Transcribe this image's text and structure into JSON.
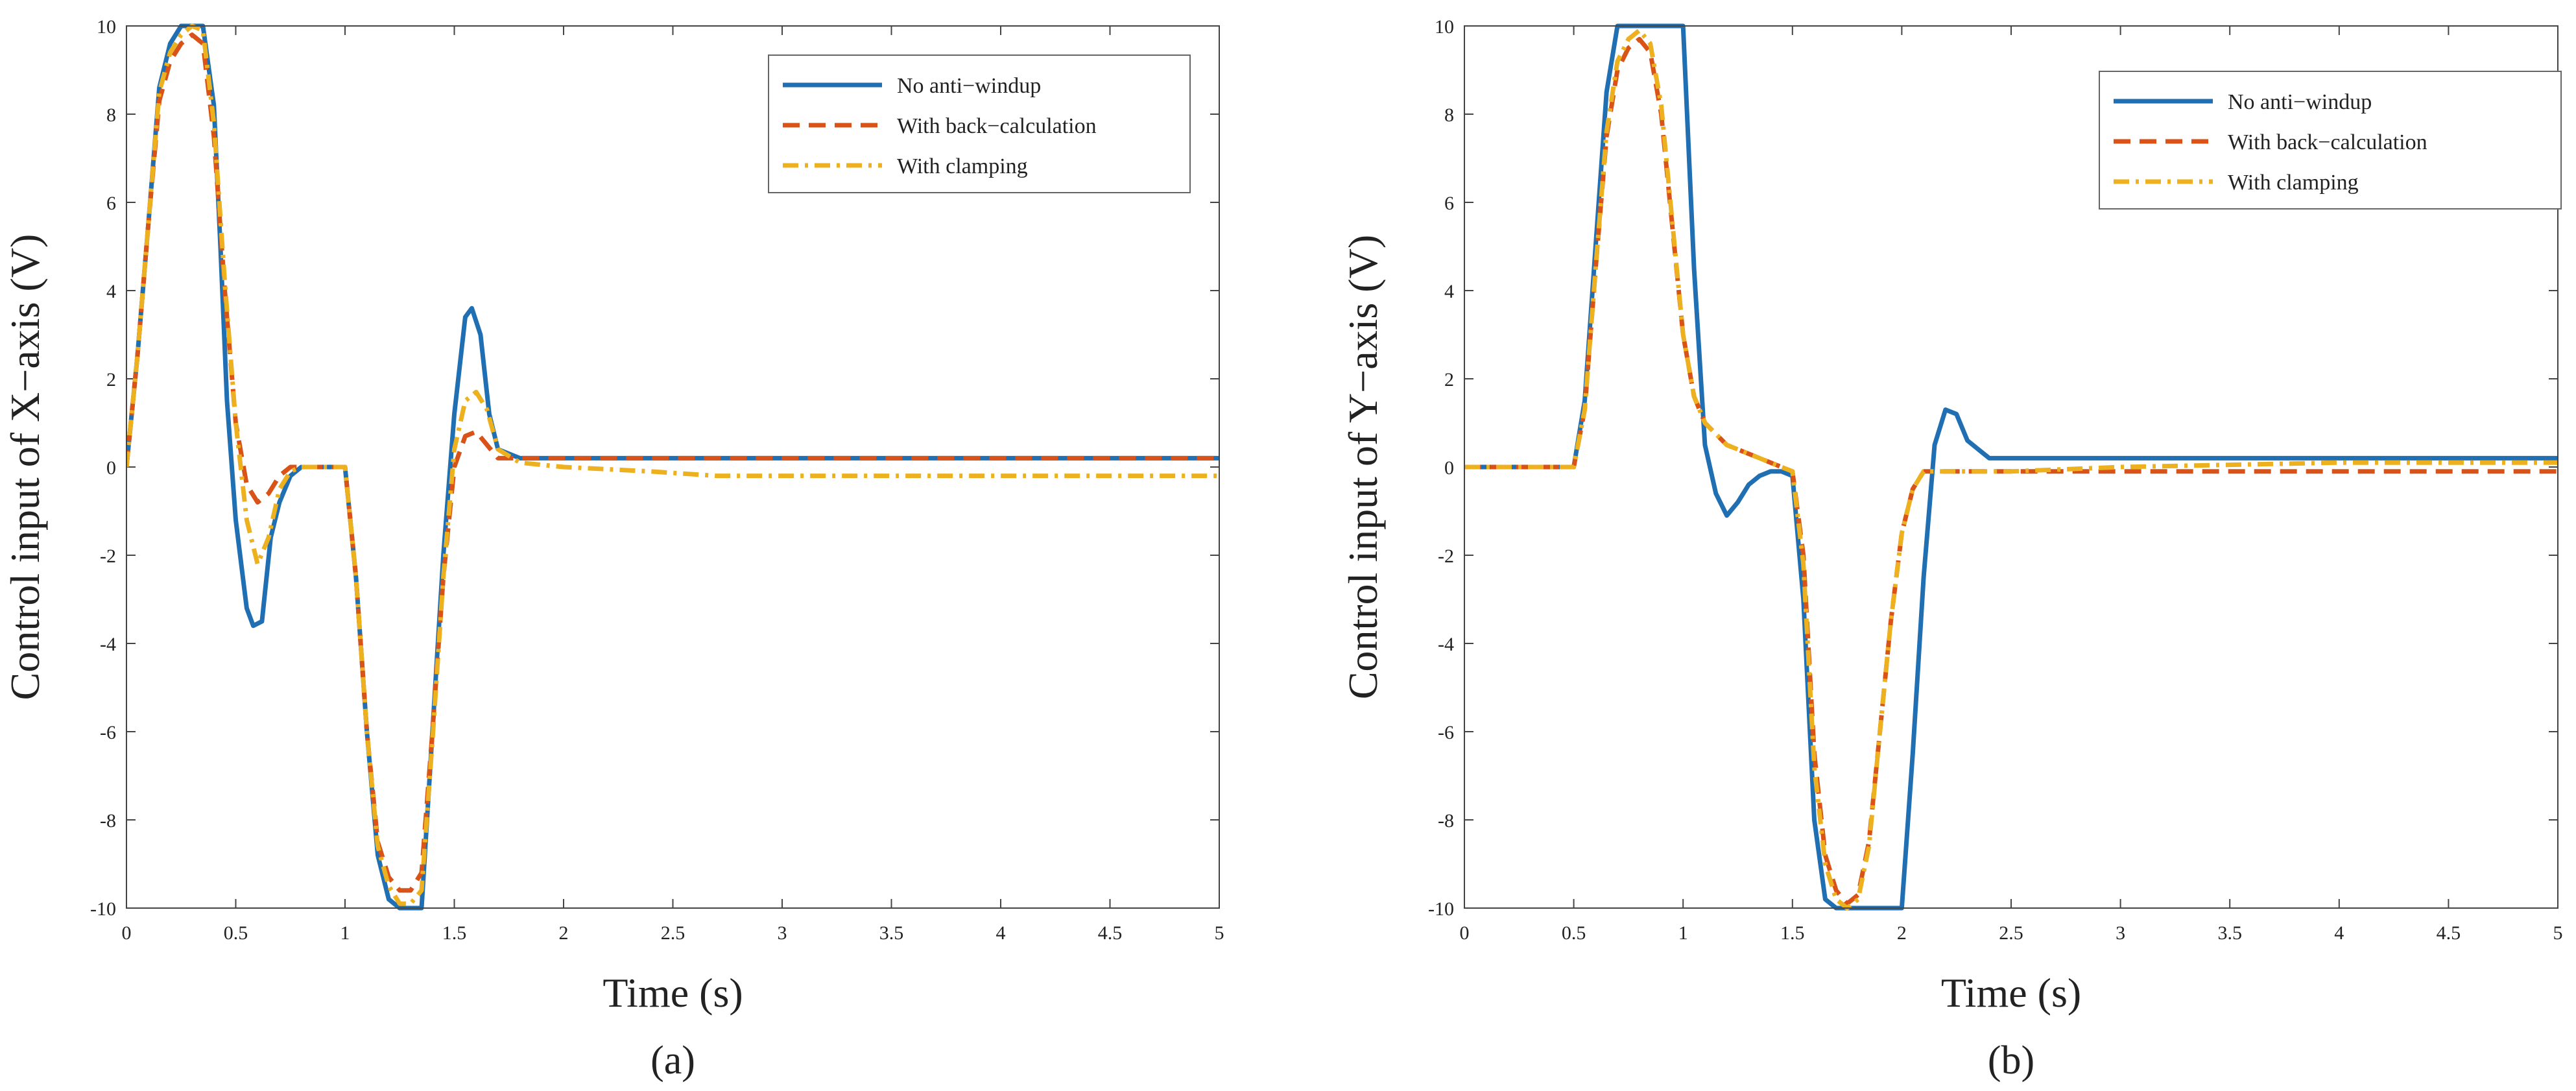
{
  "chart_data": [
    {
      "type": "line",
      "caption": "(a)",
      "xlabel": "Time (s)",
      "ylabel": "Control input of X−axis (V)",
      "xlim": [
        0,
        5
      ],
      "ylim": [
        -10,
        10
      ],
      "xticks": [
        0,
        0.5,
        1,
        1.5,
        2,
        2.5,
        3,
        3.5,
        4,
        4.5,
        5
      ],
      "xtick_labels": [
        "0",
        "0.5",
        "1",
        "1.5",
        "2",
        "2.5",
        "3",
        "3.5",
        "4",
        "4.5",
        "5"
      ],
      "yticks": [
        -10,
        -8,
        -6,
        -4,
        -2,
        0,
        2,
        4,
        6,
        8,
        10
      ],
      "ytick_labels": [
        "-10",
        "-8",
        "-6",
        "-4",
        "-2",
        "0",
        "2",
        "4",
        "6",
        "8",
        "10"
      ],
      "legend_position": "top-right",
      "series": [
        {
          "name": "No anti−windup",
          "color": "#1f6fb2",
          "style": "solid",
          "x": [
            0,
            0.05,
            0.1,
            0.15,
            0.2,
            0.25,
            0.28,
            0.3,
            0.35,
            0.4,
            0.43,
            0.46,
            0.5,
            0.55,
            0.58,
            0.62,
            0.66,
            0.7,
            0.75,
            0.8,
            0.85,
            0.9,
            0.95,
            1.0,
            1.05,
            1.1,
            1.15,
            1.2,
            1.25,
            1.28,
            1.35,
            1.4,
            1.45,
            1.5,
            1.55,
            1.58,
            1.62,
            1.66,
            1.7,
            1.8,
            2.0,
            3.0,
            4.0,
            5.0
          ],
          "y": [
            0,
            2.5,
            5.5,
            8.6,
            9.6,
            10,
            10,
            10,
            10,
            8.2,
            5.0,
            1.5,
            -1.2,
            -3.2,
            -3.6,
            -3.5,
            -1.6,
            -0.8,
            -0.2,
            0.0,
            0.0,
            0.0,
            0.0,
            0.0,
            -2.5,
            -6.0,
            -8.8,
            -9.8,
            -10,
            -10,
            -10,
            -6.0,
            -2.0,
            1.2,
            3.4,
            3.6,
            3.0,
            1.2,
            0.4,
            0.2,
            0.2,
            0.2,
            0.2,
            0.2
          ]
        },
        {
          "name": "With back−calculation",
          "color": "#d95319",
          "style": "dashed",
          "x": [
            0,
            0.05,
            0.1,
            0.15,
            0.2,
            0.25,
            0.3,
            0.35,
            0.4,
            0.45,
            0.5,
            0.55,
            0.6,
            0.65,
            0.7,
            0.75,
            0.8,
            0.85,
            0.9,
            0.95,
            1.0,
            1.05,
            1.1,
            1.15,
            1.2,
            1.25,
            1.3,
            1.35,
            1.4,
            1.45,
            1.5,
            1.55,
            1.6,
            1.65,
            1.7,
            1.8,
            2.0,
            3.0,
            4.0,
            5.0
          ],
          "y": [
            0,
            2.5,
            5.5,
            8.3,
            9.2,
            9.6,
            9.8,
            9.6,
            7.5,
            4.0,
            1.0,
            -0.4,
            -0.8,
            -0.6,
            -0.2,
            0.0,
            0.0,
            0.0,
            0.0,
            0.0,
            0.0,
            -2.5,
            -6.0,
            -8.5,
            -9.3,
            -9.6,
            -9.6,
            -9.2,
            -6.0,
            -2.5,
            0.0,
            0.7,
            0.8,
            0.5,
            0.2,
            0.2,
            0.2,
            0.2,
            0.2,
            0.2
          ]
        },
        {
          "name": "With clamping",
          "color": "#edb120",
          "style": "dashdot",
          "x": [
            0,
            0.05,
            0.1,
            0.15,
            0.2,
            0.25,
            0.3,
            0.35,
            0.4,
            0.45,
            0.5,
            0.55,
            0.6,
            0.65,
            0.7,
            0.75,
            0.8,
            0.85,
            0.9,
            0.95,
            1.0,
            1.05,
            1.1,
            1.15,
            1.2,
            1.25,
            1.3,
            1.35,
            1.4,
            1.45,
            1.5,
            1.55,
            1.6,
            1.65,
            1.7,
            1.8,
            2.0,
            2.4,
            2.7,
            3.0,
            4.0,
            5.0
          ],
          "y": [
            0,
            2.5,
            5.5,
            8.5,
            9.4,
            9.8,
            10,
            9.9,
            7.8,
            4.2,
            1.0,
            -1.2,
            -2.2,
            -1.6,
            -0.5,
            -0.1,
            0.0,
            0.0,
            0.0,
            0.0,
            0.0,
            -2.5,
            -6.0,
            -8.6,
            -9.5,
            -9.9,
            -9.9,
            -9.6,
            -6.2,
            -2.5,
            0.4,
            1.5,
            1.7,
            1.3,
            0.4,
            0.1,
            0.0,
            -0.1,
            -0.2,
            -0.2,
            -0.2,
            -0.2
          ]
        }
      ]
    },
    {
      "type": "line",
      "caption": "(b)",
      "xlabel": "Time (s)",
      "ylabel": "Control input of Y−axis (V)",
      "xlim": [
        0,
        5
      ],
      "ylim": [
        -10,
        10
      ],
      "xticks": [
        0,
        0.5,
        1,
        1.5,
        2,
        2.5,
        3,
        3.5,
        4,
        4.5,
        5
      ],
      "xtick_labels": [
        "0",
        "0.5",
        "1",
        "1.5",
        "2",
        "2.5",
        "3",
        "3.5",
        "4",
        "4.5",
        "5"
      ],
      "yticks": [
        -10,
        -8,
        -6,
        -4,
        -2,
        0,
        2,
        4,
        6,
        8,
        10
      ],
      "ytick_labels": [
        "-10",
        "-8",
        "-6",
        "-4",
        "-2",
        "0",
        "2",
        "4",
        "6",
        "8",
        "10"
      ],
      "legend_position": "top-right",
      "series": [
        {
          "name": "No anti−windup",
          "color": "#1f6fb2",
          "style": "solid",
          "x": [
            0,
            0.5,
            0.55,
            0.6,
            0.65,
            0.7,
            0.75,
            0.8,
            0.85,
            0.9,
            0.95,
            1.0,
            1.05,
            1.1,
            1.15,
            1.2,
            1.25,
            1.3,
            1.35,
            1.4,
            1.45,
            1.5,
            1.55,
            1.6,
            1.65,
            1.7,
            1.8,
            1.9,
            1.95,
            2.0,
            2.05,
            2.1,
            2.15,
            2.2,
            2.25,
            2.3,
            2.4,
            3.0,
            4.0,
            5.0
          ],
          "y": [
            0,
            0,
            1.5,
            5.0,
            8.5,
            10,
            10,
            10,
            10,
            10,
            10,
            10,
            4.5,
            0.5,
            -0.6,
            -1.1,
            -0.8,
            -0.4,
            -0.2,
            -0.1,
            -0.1,
            -0.2,
            -3.0,
            -8.0,
            -9.8,
            -10,
            -10,
            -10,
            -10,
            -10,
            -6.5,
            -2.5,
            0.5,
            1.3,
            1.2,
            0.6,
            0.2,
            0.2,
            0.2,
            0.2
          ]
        },
        {
          "name": "With back−calculation",
          "color": "#d95319",
          "style": "dashed",
          "x": [
            0,
            0.5,
            0.55,
            0.6,
            0.65,
            0.7,
            0.75,
            0.8,
            0.85,
            0.9,
            0.95,
            1.0,
            1.05,
            1.1,
            1.2,
            1.3,
            1.4,
            1.45,
            1.5,
            1.55,
            1.6,
            1.65,
            1.7,
            1.75,
            1.8,
            1.85,
            1.9,
            1.95,
            2.0,
            2.05,
            2.1,
            2.2,
            2.5,
            3.0,
            4.0,
            5.0
          ],
          "y": [
            0,
            0,
            1.3,
            4.5,
            7.5,
            9.0,
            9.5,
            9.7,
            9.4,
            8.0,
            5.5,
            3.0,
            1.6,
            1.0,
            0.5,
            0.3,
            0.1,
            0.0,
            -0.1,
            -2.0,
            -6.5,
            -8.8,
            -9.6,
            -9.9,
            -9.7,
            -8.5,
            -6.0,
            -3.5,
            -1.5,
            -0.5,
            -0.1,
            -0.1,
            -0.1,
            -0.1,
            -0.1,
            -0.1
          ]
        },
        {
          "name": "With clamping",
          "color": "#edb120",
          "style": "dashdot",
          "x": [
            0,
            0.5,
            0.55,
            0.6,
            0.65,
            0.7,
            0.75,
            0.8,
            0.85,
            0.9,
            0.95,
            1.0,
            1.05,
            1.1,
            1.2,
            1.3,
            1.4,
            1.45,
            1.5,
            1.55,
            1.6,
            1.65,
            1.7,
            1.75,
            1.8,
            1.85,
            1.9,
            1.95,
            2.0,
            2.05,
            2.1,
            2.2,
            2.5,
            3.0,
            4.0,
            5.0
          ],
          "y": [
            0,
            0,
            1.3,
            4.5,
            7.6,
            9.2,
            9.7,
            9.9,
            9.6,
            8.2,
            5.6,
            3.0,
            1.6,
            1.0,
            0.5,
            0.3,
            0.1,
            0.0,
            -0.1,
            -2.2,
            -6.8,
            -9.0,
            -9.8,
            -10,
            -9.8,
            -8.6,
            -6.0,
            -3.5,
            -1.5,
            -0.5,
            -0.1,
            -0.1,
            -0.1,
            0.0,
            0.1,
            0.1
          ]
        }
      ]
    }
  ]
}
